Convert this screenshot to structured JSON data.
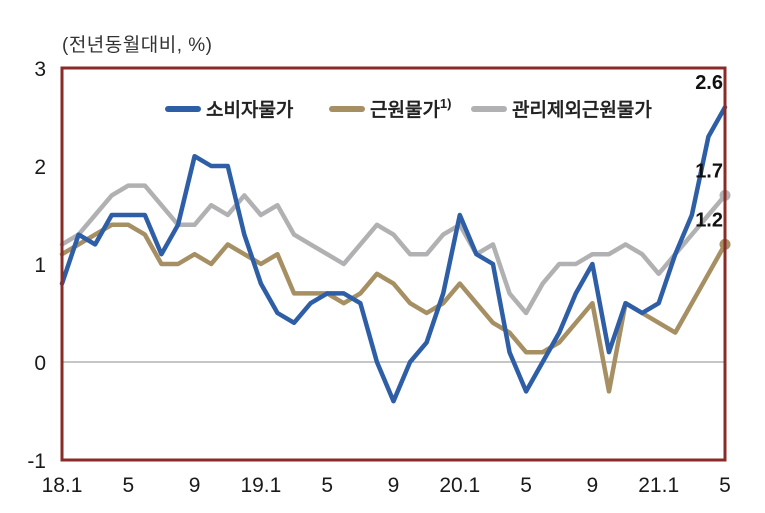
{
  "title": "(전년동월대비, %)",
  "chart_data": {
    "type": "line",
    "title": "(전년동월대비, %)",
    "x_unit": "month",
    "x_range": [
      "2018-01",
      "2021-05"
    ],
    "n_points": 41,
    "xticks": [
      {
        "label": "18.1",
        "index": 0
      },
      {
        "label": "5",
        "index": 4
      },
      {
        "label": "9",
        "index": 8
      },
      {
        "label": "19.1",
        "index": 12
      },
      {
        "label": "5",
        "index": 16
      },
      {
        "label": "9",
        "index": 20
      },
      {
        "label": "20.1",
        "index": 24
      },
      {
        "label": "5",
        "index": 28
      },
      {
        "label": "9",
        "index": 32
      },
      {
        "label": "21.1",
        "index": 36
      },
      {
        "label": "5",
        "index": 40
      }
    ],
    "yticks": [
      3,
      2,
      1,
      0,
      -1
    ],
    "ylim": [
      -1,
      3
    ],
    "grid": false,
    "zero_line": true,
    "legend_position": "top-center-inside",
    "border_color": "#8B2B28",
    "series": [
      {
        "id": "cpi",
        "name": "소비자물가",
        "sup": "",
        "color": "#2E5FA6",
        "end_label": "2.6",
        "end_dot": false,
        "values": [
          0.8,
          1.3,
          1.2,
          1.5,
          1.5,
          1.5,
          1.1,
          1.4,
          2.1,
          2.0,
          2.0,
          1.3,
          0.8,
          0.5,
          0.4,
          0.6,
          0.7,
          0.7,
          0.6,
          0.0,
          -0.4,
          0.0,
          0.2,
          0.7,
          1.5,
          1.1,
          1.0,
          0.1,
          -0.3,
          0.0,
          0.3,
          0.7,
          1.0,
          0.1,
          0.6,
          0.5,
          0.6,
          1.1,
          1.5,
          2.3,
          2.6
        ]
      },
      {
        "id": "core",
        "name": "근원물가",
        "sup": "1)",
        "color": "#A68F63",
        "end_label": "1.2",
        "end_dot": true,
        "values": [
          1.1,
          1.2,
          1.3,
          1.4,
          1.4,
          1.3,
          1.0,
          1.0,
          1.1,
          1.0,
          1.2,
          1.1,
          1.0,
          1.1,
          0.7,
          0.7,
          0.7,
          0.6,
          0.7,
          0.9,
          0.8,
          0.6,
          0.5,
          0.6,
          0.8,
          0.6,
          0.4,
          0.3,
          0.1,
          0.1,
          0.2,
          0.4,
          0.6,
          -0.3,
          0.6,
          0.5,
          0.4,
          0.3,
          0.6,
          0.9,
          1.2
        ]
      },
      {
        "id": "core-ex-admin",
        "name": "관리제외근원물가",
        "sup": "",
        "color": "#B1B1B3",
        "end_label": "1.7",
        "end_dot": true,
        "values": [
          1.2,
          1.3,
          1.5,
          1.7,
          1.8,
          1.8,
          1.6,
          1.4,
          1.4,
          1.6,
          1.5,
          1.7,
          1.5,
          1.6,
          1.3,
          1.2,
          1.1,
          1.0,
          1.2,
          1.4,
          1.3,
          1.1,
          1.1,
          1.3,
          1.4,
          1.1,
          1.2,
          0.7,
          0.5,
          0.8,
          1.0,
          1.0,
          1.1,
          1.1,
          1.2,
          1.1,
          0.9,
          1.1,
          1.3,
          1.5,
          1.7
        ]
      }
    ]
  }
}
